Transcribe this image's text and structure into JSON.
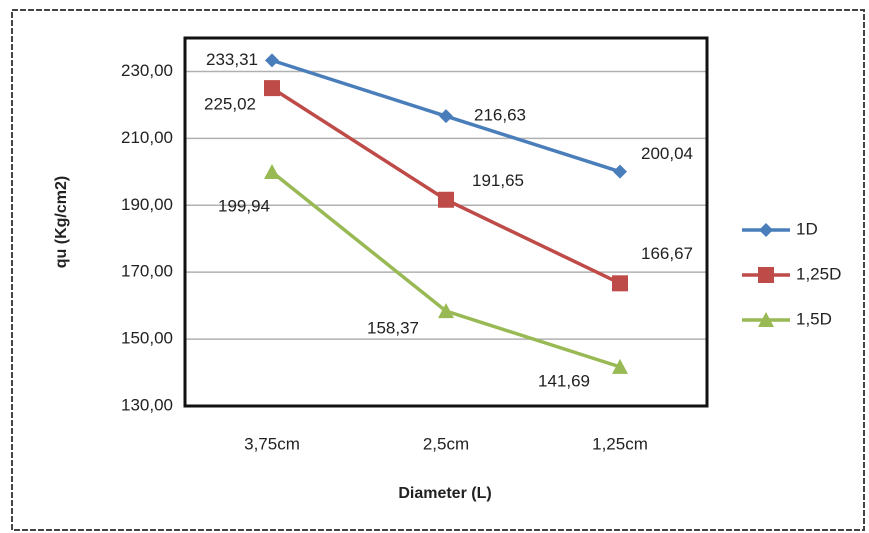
{
  "chart_data": {
    "type": "line",
    "x_label": "Diameter (L)",
    "y_label": "qu (Kg/cm2)",
    "categories": [
      "3,75cm",
      "2,5cm",
      "1,25cm"
    ],
    "series": [
      {
        "name": "1D",
        "color": "#4a7ebb",
        "marker": "diamond",
        "values": [
          233.31,
          216.63,
          200.04
        ],
        "value_labels": [
          "233,31",
          "216,63",
          "200,04"
        ]
      },
      {
        "name": "1,25D",
        "color": "#be4b48",
        "marker": "square",
        "values": [
          225.02,
          191.65,
          166.67
        ],
        "value_labels": [
          "225,02",
          "191,65",
          "166,67"
        ]
      },
      {
        "name": "1,5D",
        "color": "#98b954",
        "marker": "triangle",
        "values": [
          199.94,
          158.37,
          141.69
        ],
        "value_labels": [
          "199,94",
          "158,37",
          "141,69"
        ]
      }
    ],
    "ylim": [
      130,
      240
    ],
    "yticks": [
      {
        "value": 130,
        "label": "130,00"
      },
      {
        "value": 150,
        "label": "150,00"
      },
      {
        "value": 170,
        "label": "170,00"
      },
      {
        "value": 190,
        "label": "190,00"
      },
      {
        "value": 210,
        "label": "210,00"
      },
      {
        "value": 230,
        "label": "230,00"
      }
    ],
    "grid": true,
    "legend": "right"
  }
}
